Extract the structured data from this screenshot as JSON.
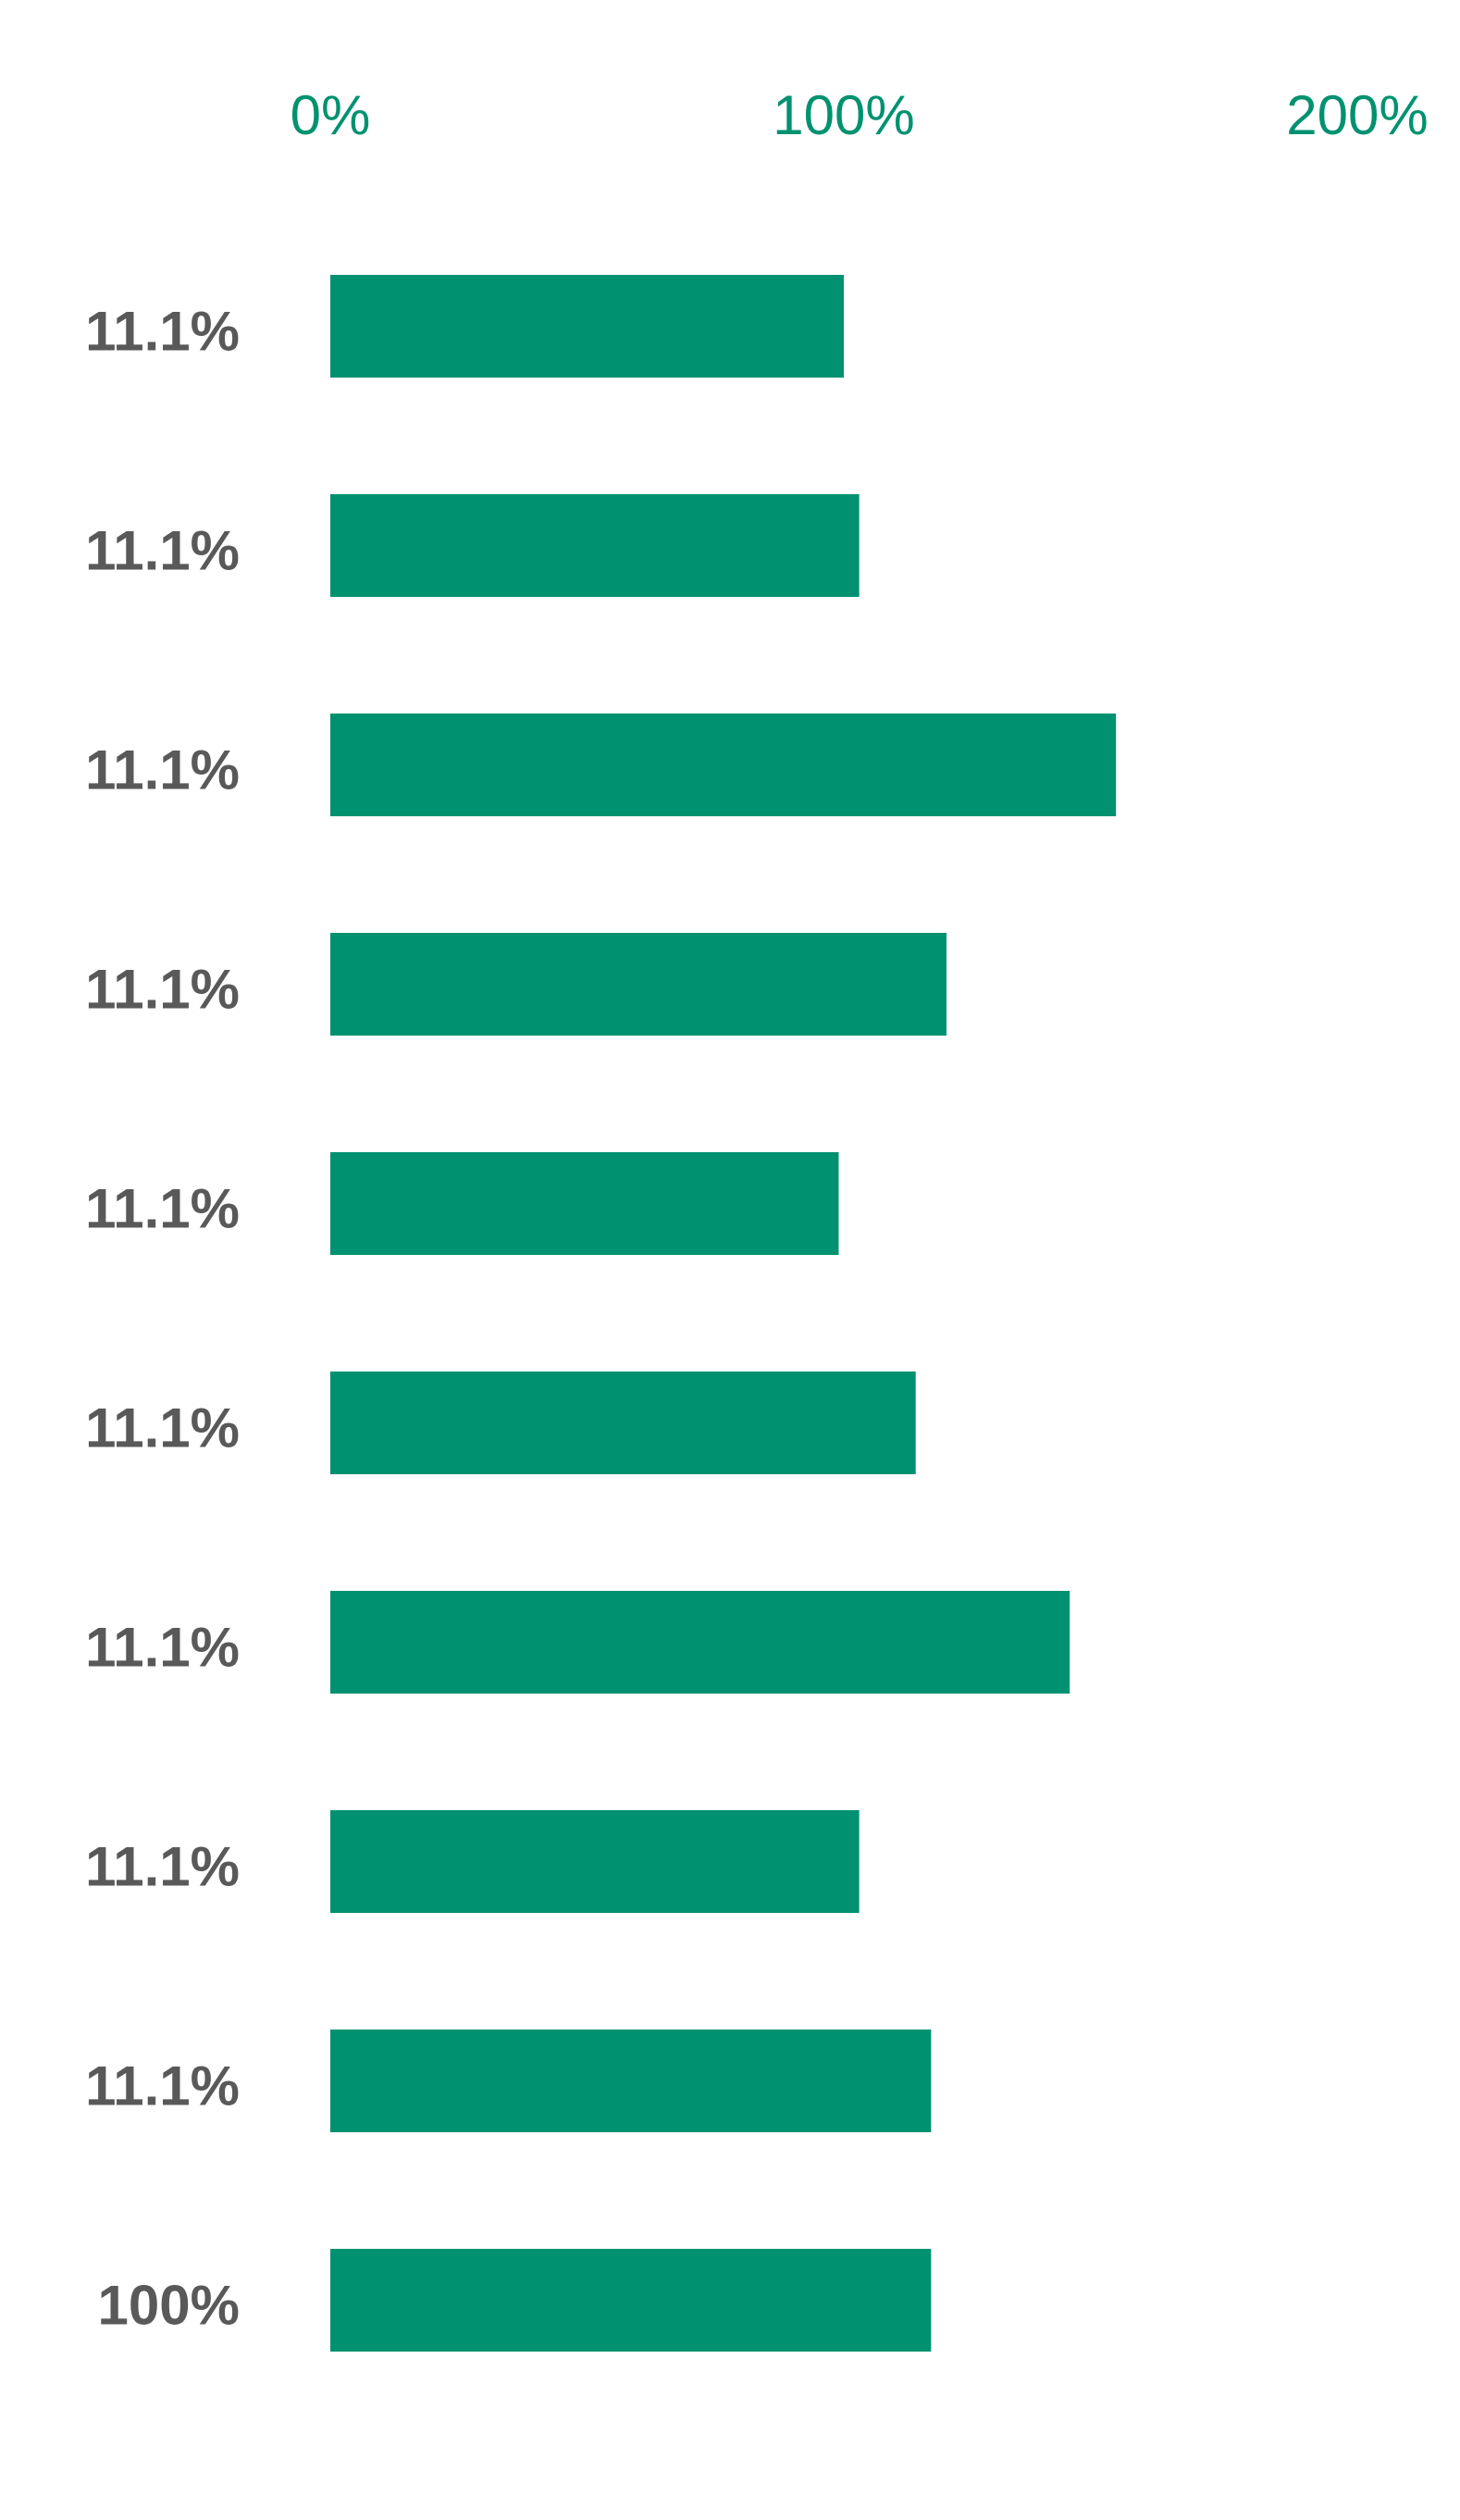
{
  "chart_data": {
    "type": "hbar",
    "categories": [
      "11.1%",
      "11.1%",
      "11.1%",
      "11.1%",
      "11.1%",
      "11.1%",
      "11.1%",
      "11.1%",
      "11.1%",
      "100%"
    ],
    "values": [
      100,
      103,
      153,
      120,
      99,
      114,
      144,
      103,
      117,
      117
    ],
    "color": "#009270",
    "xlim": [
      0,
      200
    ],
    "xticks": [
      {
        "value": 0,
        "label": "0%"
      },
      {
        "value": 100,
        "label": "100%"
      },
      {
        "value": 200,
        "label": "200%"
      }
    ],
    "grid": false
  }
}
